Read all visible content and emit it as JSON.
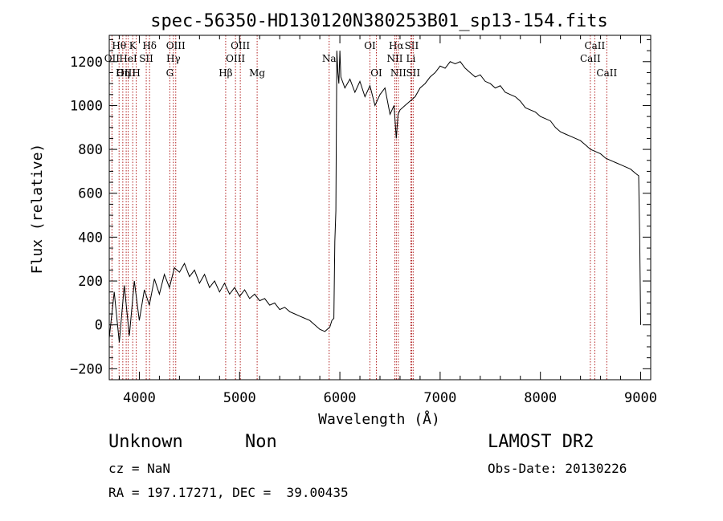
{
  "title": "spec-56350-HD130120N380253B01_sp13-154.fits",
  "info": {
    "class": "Unknown",
    "subclass": "Non",
    "survey": "LAMOST DR2",
    "cz": "cz = NaN",
    "obs_date": "Obs-Date: 20130226",
    "radec": "RA = 197.17271, DEC =  39.00435"
  },
  "chart_data": {
    "type": "line",
    "title": "spec-56350-HD130120N380253B01_sp13-154.fits",
    "xlabel": "Wavelength (Å)",
    "ylabel": "Flux (relative)",
    "xlim": [
      3700,
      9100
    ],
    "ylim": [
      -250,
      1320
    ],
    "xticks": [
      4000,
      5000,
      6000,
      7000,
      8000,
      9000
    ],
    "yticks": [
      -200,
      0,
      200,
      400,
      600,
      800,
      1000,
      1200
    ],
    "grid": false,
    "series": [
      {
        "color": "#000000",
        "x": [
          3700,
          3750,
          3800,
          3850,
          3900,
          3950,
          4000,
          4050,
          4100,
          4150,
          4200,
          4250,
          4300,
          4350,
          4400,
          4450,
          4500,
          4550,
          4600,
          4650,
          4700,
          4750,
          4800,
          4850,
          4900,
          4950,
          5000,
          5050,
          5100,
          5150,
          5200,
          5250,
          5300,
          5350,
          5400,
          5450,
          5500,
          5550,
          5600,
          5650,
          5700,
          5750,
          5800,
          5850,
          5900,
          5920,
          5940,
          5950,
          5960,
          5970,
          5980,
          5990,
          6000,
          6010,
          6050,
          6100,
          6150,
          6200,
          6250,
          6300,
          6350,
          6400,
          6450,
          6500,
          6540,
          6563,
          6580,
          6600,
          6650,
          6700,
          6750,
          6800,
          6850,
          6900,
          6950,
          7000,
          7050,
          7100,
          7150,
          7200,
          7250,
          7300,
          7350,
          7400,
          7450,
          7500,
          7550,
          7600,
          7650,
          7700,
          7750,
          7800,
          7850,
          7900,
          7950,
          8000,
          8050,
          8100,
          8150,
          8200,
          8250,
          8300,
          8350,
          8400,
          8450,
          8500,
          8550,
          8600,
          8650,
          8700,
          8750,
          8800,
          8850,
          8900,
          8950,
          8980,
          8990,
          9000
        ],
        "y": [
          -60,
          150,
          -80,
          180,
          -50,
          200,
          20,
          160,
          90,
          210,
          140,
          230,
          170,
          260,
          240,
          280,
          220,
          250,
          190,
          230,
          170,
          200,
          150,
          190,
          140,
          170,
          130,
          160,
          120,
          140,
          110,
          120,
          90,
          100,
          70,
          80,
          60,
          50,
          40,
          30,
          20,
          0,
          -20,
          -30,
          -10,
          20,
          30,
          380,
          520,
          1250,
          1150,
          1100,
          1250,
          1130,
          1080,
          1120,
          1060,
          1110,
          1040,
          1090,
          1000,
          1050,
          1080,
          960,
          1000,
          850,
          960,
          980,
          1000,
          1020,
          1040,
          1080,
          1100,
          1130,
          1150,
          1180,
          1170,
          1200,
          1190,
          1200,
          1170,
          1150,
          1130,
          1140,
          1110,
          1100,
          1080,
          1090,
          1060,
          1050,
          1040,
          1020,
          990,
          980,
          970,
          950,
          940,
          930,
          900,
          880,
          870,
          860,
          850,
          840,
          820,
          800,
          790,
          780,
          760,
          750,
          740,
          730,
          720,
          710,
          690,
          680,
          400,
          0
        ]
      }
    ],
    "spectral_lines": [
      {
        "label": "Hθ",
        "wavelength": 3798,
        "row": 1
      },
      {
        "label": "OII",
        "wavelength": 3727,
        "row": 2
      },
      {
        "label": "OIII",
        "wavelength": 3869,
        "row": 3
      },
      {
        "label": "K",
        "wavelength": 3934,
        "row": 1
      },
      {
        "label": "HeI",
        "wavelength": 3889,
        "row": 2
      },
      {
        "label": "Hη",
        "wavelength": 3835,
        "row": 3
      },
      {
        "label": "H",
        "wavelength": 3969,
        "row": 3
      },
      {
        "label": "Hδ",
        "wavelength": 4102,
        "row": 1
      },
      {
        "label": "SII",
        "wavelength": 4069,
        "row": 2
      },
      {
        "label": "OIII",
        "wavelength": 4363,
        "row": 1
      },
      {
        "label": "Hγ",
        "wavelength": 4340,
        "row": 2
      },
      {
        "label": "G",
        "wavelength": 4304,
        "row": 3
      },
      {
        "label": "OIII",
        "wavelength": 5007,
        "row": 1
      },
      {
        "label": "OIII",
        "wavelength": 4959,
        "row": 2
      },
      {
        "label": "Hβ",
        "wavelength": 4861,
        "row": 3
      },
      {
        "label": "Mg",
        "wavelength": 5175,
        "row": 3
      },
      {
        "label": "Na",
        "wavelength": 5893,
        "row": 2
      },
      {
        "label": "OI",
        "wavelength": 6300,
        "row": 1
      },
      {
        "label": "OI",
        "wavelength": 6364,
        "row": 3
      },
      {
        "label": "Hα",
        "wavelength": 6563,
        "row": 1
      },
      {
        "label": "SII",
        "wavelength": 6716,
        "row": 1
      },
      {
        "label": "NII",
        "wavelength": 6548,
        "row": 2
      },
      {
        "label": "Li",
        "wavelength": 6708,
        "row": 2
      },
      {
        "label": "NII",
        "wavelength": 6583,
        "row": 3
      },
      {
        "label": "SII",
        "wavelength": 6731,
        "row": 3
      },
      {
        "label": "CaII",
        "wavelength": 8542,
        "row": 1
      },
      {
        "label": "CaII",
        "wavelength": 8498,
        "row": 2
      },
      {
        "label": "CaII",
        "wavelength": 8662,
        "row": 3
      }
    ]
  }
}
